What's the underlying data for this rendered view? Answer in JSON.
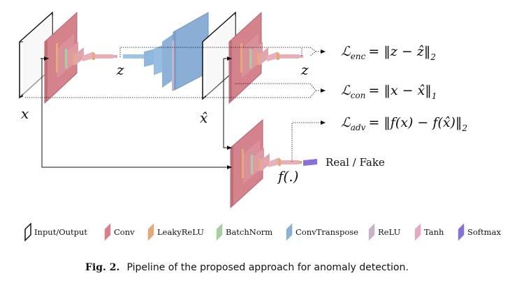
{
  "diagram": {
    "labels": {
      "x": "x",
      "xhat": "x̂",
      "z_left": "z",
      "z_right": "z",
      "f": "f(.)",
      "real_fake": "Real / Fake"
    },
    "losses": {
      "enc": {
        "L": "ℒ",
        "sub": "enc",
        "expr": "= ‖z − ẑ‖",
        "norm": "2"
      },
      "con": {
        "L": "ℒ",
        "sub": "con",
        "expr": "= ‖x − x̂‖",
        "norm": "1"
      },
      "adv": {
        "L": "ℒ",
        "sub": "adv",
        "expr": "= ‖f(x) − f(x̂)‖",
        "norm": "2"
      }
    },
    "legend": [
      {
        "label": "Input/Output",
        "color": "#ffffff",
        "stroke": "#111111"
      },
      {
        "label": "Conv",
        "color": "#d9808a"
      },
      {
        "label": "LeakyReLU",
        "color": "#e3a978"
      },
      {
        "label": "BatchNorm",
        "color": "#a9cfa0"
      },
      {
        "label": "ConvTranspose",
        "color": "#8fb0d3"
      },
      {
        "label": "ReLU",
        "color": "#c8b3c7"
      },
      {
        "label": "Tanh",
        "color": "#e6a8c1"
      },
      {
        "label": "Softmax",
        "color": "#8a70d6"
      }
    ],
    "caption": {
      "prefix": "Fig. 2.",
      "text": "Pipeline of the proposed approach for anomaly detection."
    }
  }
}
